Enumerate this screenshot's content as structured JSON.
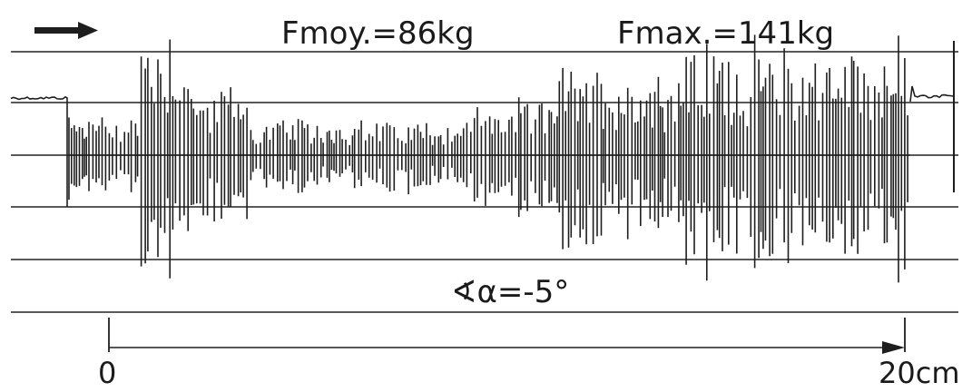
{
  "chart_data": {
    "type": "line",
    "annotations": {
      "mean_force": "Fmoy.=86kg",
      "max_force": "Fmax.=141kg",
      "angle": "∢α=-5°"
    },
    "direction_arrow": "arrow-right",
    "xaxis": {
      "tick_labels": [
        "0",
        "20cm"
      ],
      "range": [
        0,
        20
      ],
      "unit": "cm"
    },
    "grid": {
      "horizontal_lines": true,
      "count": 6
    },
    "signal": {
      "description_free": true,
      "segments": [
        {
          "x_start": 0,
          "x_end": 0.8,
          "amplitude": 0.7
        },
        {
          "x_start": 0.8,
          "x_end": 2.0,
          "amplitude": 2.3
        },
        {
          "x_start": 2.0,
          "x_end": 3.5,
          "amplitude": 1.2
        },
        {
          "x_start": 3.5,
          "x_end": 9.0,
          "amplitude": 0.6
        },
        {
          "x_start": 9.0,
          "x_end": 11.0,
          "amplitude": 0.9
        },
        {
          "x_start": 11.0,
          "x_end": 14.5,
          "amplitude": 1.5
        },
        {
          "x_start": 14.5,
          "x_end": 20.0,
          "amplitude": 1.9
        }
      ]
    },
    "colors": {
      "ink": "#1e1e1e",
      "background": "#ffffff"
    }
  }
}
